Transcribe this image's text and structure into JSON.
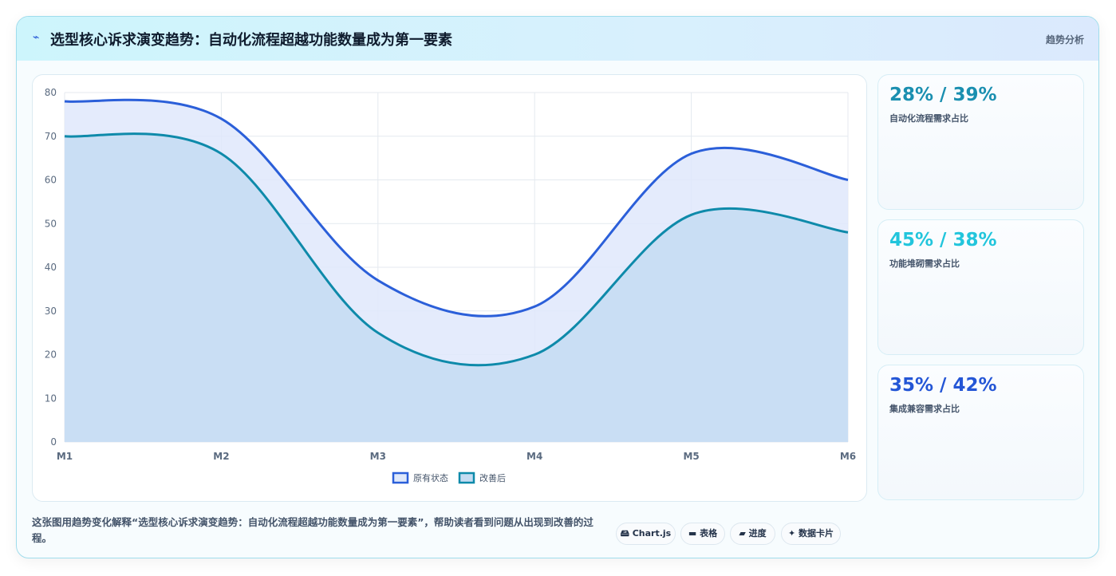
{
  "header": {
    "icon": "⌁",
    "title": "选型核心诉求演变趋势：自动化流程超越功能数量成为第一要素",
    "tag": "趋势分析"
  },
  "chart_data": {
    "type": "line",
    "categories": [
      "M1",
      "M2",
      "M3",
      "M4",
      "M5",
      "M6"
    ],
    "series": [
      {
        "name": "原有状态",
        "color": "#2b5fd9",
        "area_color": "#dfe8fb",
        "values": [
          78,
          74,
          37,
          31,
          66,
          60
        ]
      },
      {
        "name": "改善后",
        "color": "#0e8aaa",
        "area_color": "#c4dcf2",
        "values": [
          70,
          66,
          25,
          20,
          52,
          48
        ]
      }
    ],
    "ylim": [
      0,
      80
    ],
    "yticks": [
      0,
      10,
      20,
      30,
      40,
      50,
      60,
      70,
      80
    ],
    "grid": true,
    "legend": "bottom"
  },
  "stats": [
    {
      "value": "28% / 39%",
      "label": "自动化流程需求占比",
      "color": "#1a8fb0"
    },
    {
      "value": "45% / 38%",
      "label": "功能堆砌需求占比",
      "color": "#22c5dc"
    },
    {
      "value": "35% / 42%",
      "label": "集成兼容需求占比",
      "color": "#2456d6"
    }
  ],
  "footer": {
    "text": "这张图用趋势变化解释“选型核心诉求演变趋势：自动化流程超越功能数量成为第一要素”，帮助读者看到问题从出现到改善的过程。",
    "buttons": [
      "🖴 Chart.js",
      "▬ 表格",
      "▰ 进度",
      "✦ 数据卡片"
    ]
  }
}
